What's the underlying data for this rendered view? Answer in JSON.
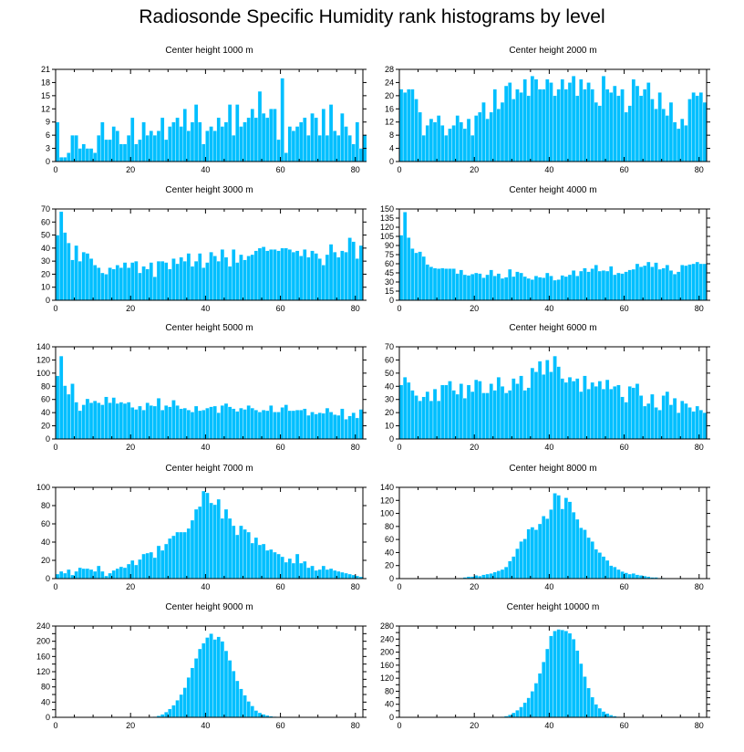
{
  "title": "Radiosonde Specific Humidity rank histograms by level",
  "colors": {
    "bar": "#00bfff",
    "bar_edge": "#ffffff",
    "axis": "#000000"
  },
  "chart_data": [
    {
      "type": "bar",
      "title": "Center height 1000 m",
      "x_start": 0,
      "xlim": [
        0,
        82
      ],
      "xticks": [
        0,
        20,
        40,
        60,
        80
      ],
      "ylim": [
        0,
        21
      ],
      "yticks": [
        0,
        3,
        6,
        9,
        12,
        15,
        18,
        21
      ],
      "values": [
        9,
        1,
        1,
        2,
        6,
        6,
        3,
        4,
        3,
        3,
        2,
        6,
        9,
        5,
        5,
        8,
        7,
        4,
        4,
        6,
        10,
        4,
        5,
        9,
        6,
        7,
        6,
        7,
        10,
        5,
        8,
        9,
        10,
        8,
        12,
        7,
        9,
        13,
        9,
        4,
        7,
        8,
        7,
        10,
        8,
        9,
        13,
        6,
        13,
        8,
        9,
        10,
        12,
        10,
        16,
        11,
        10,
        12,
        12,
        5,
        19,
        2,
        8,
        7,
        8,
        9,
        10,
        6,
        11,
        10,
        6,
        12,
        6,
        13,
        7,
        6,
        11,
        8,
        6,
        4,
        9,
        3,
        6
      ]
    },
    {
      "type": "bar",
      "title": "Center height 2000 m",
      "x_start": 0,
      "xlim": [
        0,
        82
      ],
      "xticks": [
        0,
        20,
        40,
        60,
        80
      ],
      "ylim": [
        0,
        28
      ],
      "yticks": [
        0,
        4,
        8,
        12,
        16,
        20,
        24,
        28
      ],
      "values": [
        22,
        21,
        22,
        22,
        19,
        15,
        8,
        11,
        13,
        12,
        14,
        11,
        8,
        10,
        11,
        14,
        12,
        10,
        13,
        8,
        14,
        15,
        18,
        13,
        15,
        22,
        16,
        18,
        23,
        24,
        19,
        22,
        21,
        25,
        20,
        26,
        25,
        22,
        22,
        25,
        24,
        20,
        22,
        25,
        22,
        24,
        26,
        20,
        25,
        22,
        24,
        22,
        18,
        17,
        26,
        22,
        21,
        23,
        20,
        22,
        15,
        17,
        25,
        23,
        20,
        22,
        24,
        19,
        16,
        21,
        16,
        14,
        18,
        12,
        10,
        13,
        11,
        19,
        21,
        20,
        21,
        18,
        0
      ]
    },
    {
      "type": "bar",
      "title": "Center height 3000 m",
      "x_start": 0,
      "xlim": [
        0,
        82
      ],
      "xticks": [
        0,
        20,
        40,
        60,
        80
      ],
      "ylim": [
        0,
        70
      ],
      "yticks": [
        0,
        10,
        20,
        30,
        40,
        50,
        60,
        70
      ],
      "values": [
        50,
        68,
        52,
        44,
        31,
        42,
        30,
        37,
        36,
        32,
        27,
        25,
        21,
        20,
        25,
        24,
        27,
        25,
        29,
        25,
        29,
        30,
        21,
        26,
        24,
        29,
        18,
        30,
        30,
        29,
        24,
        32,
        28,
        33,
        30,
        36,
        26,
        30,
        36,
        25,
        29,
        37,
        34,
        30,
        39,
        33,
        26,
        39,
        29,
        35,
        31,
        34,
        35,
        38,
        40,
        41,
        38,
        39,
        39,
        38,
        40,
        40,
        39,
        37,
        38,
        34,
        39,
        33,
        38,
        36,
        32,
        27,
        35,
        43,
        37,
        33,
        38,
        37,
        48,
        45,
        32,
        42,
        0
      ]
    },
    {
      "type": "bar",
      "title": "Center height 4000 m",
      "x_start": 0,
      "xlim": [
        0,
        82
      ],
      "xticks": [
        0,
        20,
        40,
        60,
        80
      ],
      "ylim": [
        0,
        150
      ],
      "yticks": [
        0,
        15,
        30,
        45,
        60,
        75,
        90,
        105,
        120,
        135,
        150
      ],
      "values": [
        107,
        145,
        103,
        85,
        78,
        80,
        72,
        59,
        55,
        53,
        52,
        53,
        52,
        52,
        52,
        44,
        50,
        42,
        41,
        43,
        45,
        44,
        37,
        42,
        50,
        40,
        44,
        36,
        38,
        51,
        39,
        47,
        45,
        39,
        36,
        34,
        40,
        38,
        37,
        45,
        40,
        33,
        34,
        41,
        39,
        42,
        49,
        40,
        48,
        53,
        47,
        52,
        58,
        48,
        49,
        48,
        56,
        42,
        45,
        44,
        47,
        50,
        51,
        60,
        55,
        57,
        63,
        55,
        62,
        51,
        53,
        58,
        49,
        43,
        47,
        58,
        57,
        59,
        60,
        63,
        60,
        60,
        0
      ]
    },
    {
      "type": "bar",
      "title": "Center height 5000 m",
      "x_start": 0,
      "xlim": [
        0,
        82
      ],
      "xticks": [
        0,
        20,
        40,
        60,
        80
      ],
      "ylim": [
        0,
        140
      ],
      "yticks": [
        0,
        20,
        40,
        60,
        80,
        100,
        120,
        140
      ],
      "values": [
        96,
        126,
        81,
        68,
        84,
        56,
        43,
        52,
        61,
        55,
        58,
        55,
        52,
        64,
        55,
        63,
        54,
        56,
        54,
        56,
        48,
        45,
        50,
        44,
        55,
        51,
        50,
        62,
        44,
        51,
        49,
        59,
        51,
        46,
        47,
        44,
        41,
        50,
        43,
        44,
        47,
        49,
        50,
        40,
        51,
        54,
        49,
        46,
        42,
        47,
        45,
        51,
        47,
        44,
        41,
        44,
        43,
        51,
        41,
        41,
        48,
        52,
        43,
        43,
        44,
        44,
        46,
        36,
        41,
        38,
        40,
        39,
        47,
        41,
        37,
        36,
        46,
        30,
        35,
        40,
        32,
        45,
        0
      ]
    },
    {
      "type": "bar",
      "title": "Center height 6000 m",
      "x_start": 0,
      "xlim": [
        0,
        82
      ],
      "xticks": [
        0,
        20,
        40,
        60,
        80
      ],
      "ylim": [
        0,
        70
      ],
      "yticks": [
        0,
        10,
        20,
        30,
        40,
        50,
        60,
        70
      ],
      "values": [
        41,
        47,
        43,
        37,
        33,
        29,
        32,
        36,
        29,
        38,
        29,
        41,
        41,
        44,
        37,
        34,
        42,
        31,
        41,
        36,
        45,
        44,
        35,
        35,
        42,
        37,
        47,
        40,
        35,
        37,
        46,
        42,
        48,
        37,
        39,
        54,
        51,
        59,
        49,
        60,
        51,
        63,
        55,
        46,
        43,
        47,
        44,
        46,
        36,
        48,
        38,
        43,
        40,
        44,
        38,
        45,
        38,
        40,
        41,
        32,
        28,
        40,
        39,
        42,
        33,
        25,
        27,
        34,
        24,
        22,
        33,
        36,
        26,
        31,
        20,
        29,
        27,
        24,
        21,
        25,
        22,
        20,
        0
      ]
    },
    {
      "type": "bar",
      "title": "Center height 7000 m",
      "x_start": 0,
      "xlim": [
        0,
        82
      ],
      "xticks": [
        0,
        20,
        40,
        60,
        80
      ],
      "ylim": [
        0,
        100
      ],
      "yticks": [
        0,
        20,
        40,
        60,
        80,
        100
      ],
      "values": [
        5,
        8,
        6,
        10,
        4,
        8,
        12,
        11,
        11,
        10,
        8,
        14,
        8,
        3,
        6,
        9,
        11,
        13,
        12,
        16,
        20,
        15,
        21,
        27,
        28,
        29,
        23,
        36,
        31,
        38,
        44,
        47,
        51,
        51,
        51,
        55,
        64,
        76,
        79,
        96,
        94,
        83,
        81,
        87,
        66,
        76,
        66,
        58,
        48,
        58,
        54,
        51,
        39,
        45,
        37,
        38,
        31,
        32,
        29,
        27,
        24,
        18,
        22,
        17,
        27,
        17,
        19,
        12,
        14,
        9,
        10,
        14,
        10,
        11,
        9,
        8,
        7,
        6,
        5,
        4,
        3,
        2,
        0
      ]
    },
    {
      "type": "bar",
      "title": "Center height 8000 m",
      "x_start": 0,
      "xlim": [
        0,
        82
      ],
      "xticks": [
        0,
        20,
        40,
        60,
        80
      ],
      "ylim": [
        0,
        140
      ],
      "yticks": [
        0,
        20,
        40,
        60,
        80,
        100,
        120,
        140
      ],
      "values": [
        0,
        0,
        0,
        0,
        0,
        0,
        0,
        0,
        0,
        0,
        0,
        0,
        0,
        0,
        0,
        0,
        1,
        2,
        3,
        3,
        5,
        4,
        6,
        7,
        8,
        10,
        12,
        14,
        18,
        27,
        34,
        46,
        57,
        61,
        76,
        79,
        75,
        84,
        96,
        92,
        106,
        131,
        128,
        107,
        124,
        118,
        102,
        91,
        78,
        75,
        63,
        57,
        45,
        40,
        34,
        28,
        20,
        18,
        14,
        11,
        9,
        7,
        8,
        6,
        5,
        4,
        3,
        2,
        2,
        1,
        1,
        0,
        0,
        0,
        0,
        0,
        0,
        0,
        0,
        0,
        0,
        0,
        0
      ]
    },
    {
      "type": "bar",
      "title": "Center height 9000 m",
      "x_start": 0,
      "xlim": [
        0,
        82
      ],
      "xticks": [
        0,
        20,
        40,
        60,
        80
      ],
      "ylim": [
        0,
        240
      ],
      "yticks": [
        0,
        20,
        40,
        60,
        80,
        100,
        120,
        140,
        160,
        180,
        200,
        220,
        240
      ],
      "ytick_labels": [
        "0",
        "",
        "40",
        "",
        "80",
        "",
        "120",
        "",
        "160",
        "",
        "200",
        "",
        "240"
      ],
      "values": [
        0,
        0,
        0,
        0,
        0,
        0,
        0,
        0,
        0,
        0,
        0,
        0,
        0,
        0,
        0,
        0,
        0,
        0,
        0,
        0,
        0,
        0,
        0,
        0,
        0,
        1,
        2,
        4,
        8,
        14,
        22,
        32,
        45,
        60,
        78,
        105,
        130,
        155,
        180,
        195,
        210,
        220,
        205,
        212,
        200,
        175,
        150,
        122,
        96,
        75,
        58,
        42,
        30,
        18,
        12,
        8,
        5,
        3,
        2,
        1,
        1,
        0,
        0,
        0,
        0,
        0,
        0,
        0,
        0,
        0,
        0,
        0,
        0,
        0,
        0,
        0,
        0,
        0,
        0,
        0,
        0,
        0,
        0
      ]
    },
    {
      "type": "bar",
      "title": "Center height 10000 m",
      "x_start": 0,
      "xlim": [
        0,
        82
      ],
      "xticks": [
        0,
        20,
        40,
        60,
        80
      ],
      "ylim": [
        0,
        280
      ],
      "yticks": [
        0,
        20,
        40,
        60,
        80,
        100,
        120,
        140,
        160,
        180,
        200,
        220,
        240,
        260,
        280
      ],
      "ytick_labels": [
        "0",
        "",
        "40",
        "",
        "80",
        "",
        "120",
        "",
        "160",
        "",
        "200",
        "",
        "240",
        "",
        "280"
      ],
      "values": [
        0,
        0,
        0,
        0,
        0,
        0,
        0,
        0,
        0,
        0,
        0,
        0,
        0,
        0,
        0,
        0,
        0,
        0,
        0,
        0,
        0,
        0,
        0,
        0,
        0,
        0,
        1,
        2,
        4,
        8,
        14,
        22,
        32,
        45,
        60,
        80,
        105,
        135,
        170,
        210,
        250,
        265,
        270,
        268,
        265,
        258,
        240,
        205,
        165,
        125,
        90,
        62,
        40,
        28,
        18,
        12,
        7,
        4,
        2,
        1,
        1,
        0,
        0,
        0,
        0,
        0,
        0,
        0,
        0,
        0,
        0,
        0,
        0,
        0,
        0,
        0,
        0,
        0,
        0,
        0,
        0,
        0,
        0
      ]
    }
  ]
}
